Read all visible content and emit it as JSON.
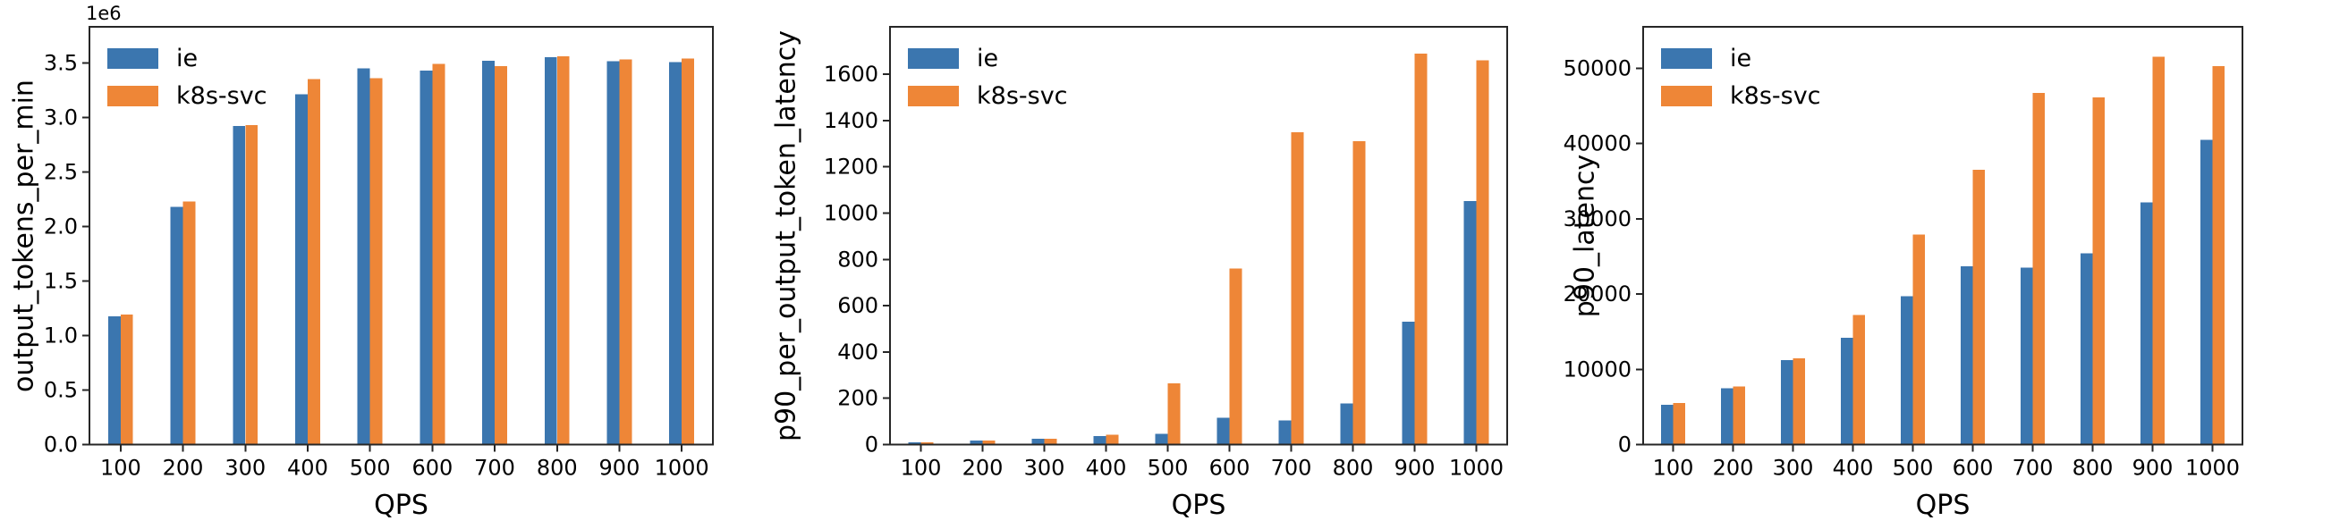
{
  "figure": {
    "background": "#ffffff",
    "axis_color": "#262626",
    "series_colors": {
      "ie": "#3b76af",
      "k8s-svc": "#ee8637"
    }
  },
  "chart_data": [
    {
      "type": "bar",
      "title": "",
      "ylabel": "output_tokens_per_min",
      "xlabel": "QPS",
      "offset_text": "1e6",
      "categories": [
        "100",
        "200",
        "300",
        "400",
        "500",
        "600",
        "700",
        "800",
        "900",
        "1000"
      ],
      "series": [
        {
          "name": "ie",
          "color": "#3b76af",
          "values": [
            1175000,
            2180000,
            2920000,
            3210000,
            3450000,
            3430000,
            3520000,
            3550000,
            3515000,
            3505000
          ]
        },
        {
          "name": "k8s-svc",
          "color": "#ee8637",
          "values": [
            1190000,
            2230000,
            2930000,
            3350000,
            3360000,
            3490000,
            3470000,
            3560000,
            3530000,
            3540000
          ]
        }
      ],
      "yticks": {
        "values": [
          0,
          500000,
          1000000,
          1500000,
          2000000,
          2500000,
          3000000,
          3500000
        ],
        "labels": [
          "0.0",
          "0.5",
          "1.0",
          "1.5",
          "2.0",
          "2.5",
          "3.0",
          "3.5"
        ]
      },
      "ylim": [
        0,
        3830000
      ],
      "grid": false,
      "legend_position": "upper left"
    },
    {
      "type": "bar",
      "title": "",
      "ylabel": "p90_per_output_token_latency",
      "xlabel": "QPS",
      "offset_text": "",
      "categories": [
        "100",
        "200",
        "300",
        "400",
        "500",
        "600",
        "700",
        "800",
        "900",
        "1000"
      ],
      "series": [
        {
          "name": "ie",
          "color": "#3b76af",
          "values": [
            10,
            18,
            26,
            36,
            46,
            115,
            105,
            177,
            530,
            1053
          ]
        },
        {
          "name": "k8s-svc",
          "color": "#ee8637",
          "values": [
            10,
            18,
            25,
            43,
            265,
            760,
            1350,
            1310,
            1690,
            1660
          ]
        }
      ],
      "yticks": {
        "values": [
          0,
          200,
          400,
          600,
          800,
          1000,
          1200,
          1400,
          1600
        ],
        "labels": [
          "0",
          "200",
          "400",
          "600",
          "800",
          "1000",
          "1200",
          "1400",
          "1600"
        ]
      },
      "ylim": [
        0,
        1805
      ],
      "grid": false,
      "legend_position": "upper left"
    },
    {
      "type": "bar",
      "title": "",
      "ylabel": "p90_latency",
      "xlabel": "QPS",
      "offset_text": "",
      "categories": [
        "100",
        "200",
        "300",
        "400",
        "500",
        "600",
        "700",
        "800",
        "900",
        "1000"
      ],
      "series": [
        {
          "name": "ie",
          "color": "#3b76af",
          "values": [
            5300,
            7450,
            11200,
            14200,
            19700,
            23700,
            23500,
            25400,
            32200,
            40500
          ]
        },
        {
          "name": "k8s-svc",
          "color": "#ee8637",
          "values": [
            5500,
            7700,
            11450,
            17200,
            27900,
            36500,
            46700,
            46100,
            51500,
            50300
          ]
        }
      ],
      "yticks": {
        "values": [
          0,
          10000,
          20000,
          30000,
          40000,
          50000
        ],
        "labels": [
          "0",
          "10000",
          "20000",
          "30000",
          "40000",
          "50000"
        ]
      },
      "ylim": [
        0,
        55500
      ],
      "grid": false,
      "legend_position": "upper left"
    }
  ]
}
